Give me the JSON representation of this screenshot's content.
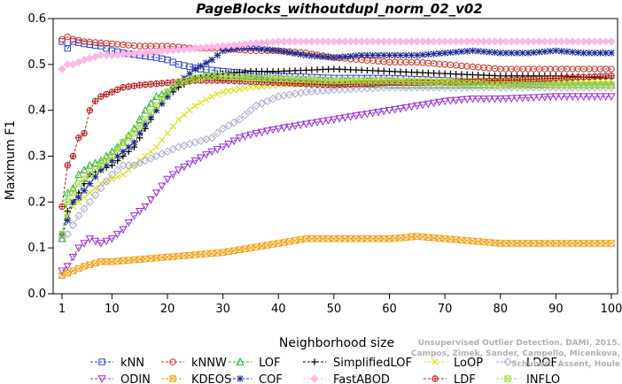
{
  "chart_data": {
    "type": "line",
    "title": "PageBlocks_withoutdupl_norm_02_v02",
    "xlabel": "Neighborhood size",
    "ylabel": "Maximum F1",
    "xlim": [
      1,
      100
    ],
    "ylim": [
      0.0,
      0.6
    ],
    "xticks": [
      "1",
      "10",
      "20",
      "30",
      "40",
      "50",
      "60",
      "70",
      "80",
      "90",
      "100"
    ],
    "yticks": [
      "0.0",
      "0.1",
      "0.2",
      "0.3",
      "0.4",
      "0.5",
      "0.6"
    ],
    "grid": false,
    "legend_position": "bottom",
    "series": [
      {
        "name": "kNN",
        "color": "#2a3fd0",
        "marker": "square",
        "points": [
          [
            1,
            0.55
          ],
          [
            2,
            0.535
          ],
          [
            3,
            0.55
          ],
          [
            5,
            0.545
          ],
          [
            8,
            0.54
          ],
          [
            10,
            0.53
          ],
          [
            12,
            0.525
          ],
          [
            15,
            0.52
          ],
          [
            18,
            0.515
          ],
          [
            20,
            0.51
          ],
          [
            22,
            0.5
          ],
          [
            24,
            0.495
          ],
          [
            26,
            0.49
          ],
          [
            30,
            0.485
          ],
          [
            35,
            0.48
          ],
          [
            40,
            0.475
          ],
          [
            50,
            0.47
          ],
          [
            60,
            0.47
          ],
          [
            70,
            0.465
          ],
          [
            80,
            0.46
          ],
          [
            90,
            0.455
          ],
          [
            100,
            0.455
          ]
        ]
      },
      {
        "name": "kNNW",
        "color": "#d03020",
        "marker": "circle",
        "points": [
          [
            1,
            0.555
          ],
          [
            2,
            0.56
          ],
          [
            3,
            0.555
          ],
          [
            5,
            0.55
          ],
          [
            10,
            0.545
          ],
          [
            15,
            0.54
          ],
          [
            20,
            0.54
          ],
          [
            25,
            0.535
          ],
          [
            30,
            0.535
          ],
          [
            35,
            0.53
          ],
          [
            40,
            0.53
          ],
          [
            45,
            0.525
          ],
          [
            50,
            0.515
          ],
          [
            55,
            0.51
          ],
          [
            60,
            0.505
          ],
          [
            65,
            0.505
          ],
          [
            70,
            0.5
          ],
          [
            75,
            0.495
          ],
          [
            80,
            0.49
          ],
          [
            90,
            0.49
          ],
          [
            100,
            0.49
          ]
        ]
      },
      {
        "name": "LOF",
        "color": "#20b020",
        "marker": "triangle-up",
        "points": [
          [
            1,
            0.12
          ],
          [
            2,
            0.22
          ],
          [
            3,
            0.23
          ],
          [
            4,
            0.26
          ],
          [
            6,
            0.28
          ],
          [
            8,
            0.29
          ],
          [
            10,
            0.31
          ],
          [
            12,
            0.33
          ],
          [
            14,
            0.36
          ],
          [
            16,
            0.4
          ],
          [
            18,
            0.43
          ],
          [
            20,
            0.44
          ],
          [
            22,
            0.46
          ],
          [
            25,
            0.47
          ],
          [
            28,
            0.475
          ],
          [
            30,
            0.47
          ],
          [
            35,
            0.47
          ],
          [
            40,
            0.465
          ],
          [
            50,
            0.46
          ],
          [
            60,
            0.455
          ],
          [
            70,
            0.455
          ],
          [
            80,
            0.455
          ],
          [
            90,
            0.455
          ],
          [
            100,
            0.455
          ]
        ]
      },
      {
        "name": "SimplifiedLOF",
        "color": "#000000",
        "marker": "plus",
        "points": [
          [
            1,
            0.13
          ],
          [
            2,
            0.18
          ],
          [
            3,
            0.2
          ],
          [
            4,
            0.22
          ],
          [
            6,
            0.26
          ],
          [
            8,
            0.27
          ],
          [
            10,
            0.28
          ],
          [
            12,
            0.3
          ],
          [
            14,
            0.32
          ],
          [
            16,
            0.36
          ],
          [
            18,
            0.4
          ],
          [
            20,
            0.43
          ],
          [
            22,
            0.45
          ],
          [
            25,
            0.47
          ],
          [
            28,
            0.475
          ],
          [
            30,
            0.48
          ],
          [
            35,
            0.485
          ],
          [
            40,
            0.485
          ],
          [
            50,
            0.49
          ],
          [
            60,
            0.485
          ],
          [
            70,
            0.48
          ],
          [
            80,
            0.475
          ],
          [
            90,
            0.475
          ],
          [
            100,
            0.47
          ]
        ]
      },
      {
        "name": "LoOP",
        "color": "#e0e020",
        "marker": "x",
        "points": [
          [
            1,
            0.13
          ],
          [
            2,
            0.17
          ],
          [
            3,
            0.19
          ],
          [
            4,
            0.2
          ],
          [
            6,
            0.22
          ],
          [
            8,
            0.24
          ],
          [
            10,
            0.25
          ],
          [
            12,
            0.26
          ],
          [
            14,
            0.28
          ],
          [
            16,
            0.3
          ],
          [
            18,
            0.32
          ],
          [
            20,
            0.35
          ],
          [
            22,
            0.38
          ],
          [
            25,
            0.41
          ],
          [
            28,
            0.43
          ],
          [
            30,
            0.44
          ],
          [
            35,
            0.45
          ],
          [
            40,
            0.455
          ],
          [
            50,
            0.46
          ],
          [
            60,
            0.465
          ],
          [
            70,
            0.465
          ],
          [
            80,
            0.465
          ],
          [
            90,
            0.465
          ],
          [
            100,
            0.465
          ]
        ]
      },
      {
        "name": "LDOF",
        "color": "#aaaad0",
        "marker": "diamond",
        "points": [
          [
            1,
            0.12
          ],
          [
            2,
            0.13
          ],
          [
            3,
            0.15
          ],
          [
            4,
            0.17
          ],
          [
            6,
            0.2
          ],
          [
            8,
            0.23
          ],
          [
            10,
            0.26
          ],
          [
            12,
            0.28
          ],
          [
            14,
            0.28
          ],
          [
            16,
            0.29
          ],
          [
            18,
            0.3
          ],
          [
            20,
            0.31
          ],
          [
            22,
            0.32
          ],
          [
            25,
            0.33
          ],
          [
            28,
            0.34
          ],
          [
            30,
            0.36
          ],
          [
            33,
            0.38
          ],
          [
            36,
            0.41
          ],
          [
            40,
            0.43
          ],
          [
            45,
            0.44
          ],
          [
            50,
            0.445
          ],
          [
            60,
            0.45
          ],
          [
            70,
            0.45
          ],
          [
            80,
            0.45
          ],
          [
            90,
            0.45
          ],
          [
            100,
            0.45
          ]
        ]
      },
      {
        "name": "ODIN",
        "color": "#9a2ed8",
        "marker": "triangle-down",
        "points": [
          [
            1,
            0.05
          ],
          [
            2,
            0.06
          ],
          [
            3,
            0.08
          ],
          [
            4,
            0.1
          ],
          [
            5,
            0.11
          ],
          [
            6,
            0.12
          ],
          [
            8,
            0.11
          ],
          [
            10,
            0.12
          ],
          [
            12,
            0.14
          ],
          [
            14,
            0.17
          ],
          [
            16,
            0.19
          ],
          [
            18,
            0.22
          ],
          [
            20,
            0.25
          ],
          [
            22,
            0.27
          ],
          [
            25,
            0.29
          ],
          [
            28,
            0.31
          ],
          [
            30,
            0.32
          ],
          [
            33,
            0.34
          ],
          [
            36,
            0.35
          ],
          [
            40,
            0.36
          ],
          [
            45,
            0.37
          ],
          [
            50,
            0.38
          ],
          [
            55,
            0.39
          ],
          [
            60,
            0.4
          ],
          [
            65,
            0.41
          ],
          [
            70,
            0.42
          ],
          [
            75,
            0.425
          ],
          [
            80,
            0.425
          ],
          [
            90,
            0.43
          ],
          [
            100,
            0.43
          ]
        ]
      },
      {
        "name": "KDEOS",
        "color": "#f0a010",
        "marker": "square-x",
        "points": [
          [
            1,
            0.04
          ],
          [
            3,
            0.05
          ],
          [
            5,
            0.06
          ],
          [
            8,
            0.07
          ],
          [
            10,
            0.07
          ],
          [
            15,
            0.075
          ],
          [
            20,
            0.08
          ],
          [
            25,
            0.085
          ],
          [
            30,
            0.09
          ],
          [
            35,
            0.1
          ],
          [
            40,
            0.11
          ],
          [
            45,
            0.12
          ],
          [
            50,
            0.12
          ],
          [
            55,
            0.12
          ],
          [
            60,
            0.12
          ],
          [
            65,
            0.125
          ],
          [
            70,
            0.12
          ],
          [
            75,
            0.115
          ],
          [
            80,
            0.11
          ],
          [
            90,
            0.11
          ],
          [
            100,
            0.11
          ]
        ]
      },
      {
        "name": "COF",
        "color": "#1a2a90",
        "marker": "star",
        "points": [
          [
            1,
            0.13
          ],
          [
            2,
            0.16
          ],
          [
            3,
            0.2
          ],
          [
            4,
            0.21
          ],
          [
            6,
            0.24
          ],
          [
            8,
            0.27
          ],
          [
            10,
            0.29
          ],
          [
            12,
            0.31
          ],
          [
            14,
            0.33
          ],
          [
            16,
            0.37
          ],
          [
            18,
            0.4
          ],
          [
            20,
            0.43
          ],
          [
            22,
            0.46
          ],
          [
            25,
            0.49
          ],
          [
            28,
            0.51
          ],
          [
            30,
            0.53
          ],
          [
            33,
            0.535
          ],
          [
            36,
            0.535
          ],
          [
            40,
            0.53
          ],
          [
            45,
            0.52
          ],
          [
            50,
            0.515
          ],
          [
            55,
            0.52
          ],
          [
            60,
            0.52
          ],
          [
            65,
            0.52
          ],
          [
            70,
            0.525
          ],
          [
            75,
            0.53
          ],
          [
            80,
            0.525
          ],
          [
            85,
            0.525
          ],
          [
            90,
            0.53
          ],
          [
            95,
            0.525
          ],
          [
            100,
            0.525
          ]
        ]
      },
      {
        "name": "FastABOD",
        "color": "#ffb8e8",
        "marker": "diamond-filled",
        "points": [
          [
            1,
            0.49
          ],
          [
            2,
            0.5
          ],
          [
            3,
            0.5
          ],
          [
            5,
            0.51
          ],
          [
            8,
            0.52
          ],
          [
            10,
            0.52
          ],
          [
            15,
            0.525
          ],
          [
            20,
            0.53
          ],
          [
            25,
            0.535
          ],
          [
            30,
            0.54
          ],
          [
            35,
            0.545
          ],
          [
            40,
            0.55
          ],
          [
            50,
            0.55
          ],
          [
            60,
            0.55
          ],
          [
            70,
            0.55
          ],
          [
            80,
            0.55
          ],
          [
            90,
            0.55
          ],
          [
            100,
            0.55
          ]
        ]
      },
      {
        "name": "LDF",
        "color": "#b01818",
        "marker": "circle-plus",
        "points": [
          [
            1,
            0.19
          ],
          [
            2,
            0.28
          ],
          [
            3,
            0.3
          ],
          [
            4,
            0.34
          ],
          [
            5,
            0.35
          ],
          [
            6,
            0.4
          ],
          [
            7,
            0.42
          ],
          [
            8,
            0.43
          ],
          [
            10,
            0.44
          ],
          [
            12,
            0.45
          ],
          [
            15,
            0.455
          ],
          [
            20,
            0.46
          ],
          [
            25,
            0.465
          ],
          [
            30,
            0.465
          ],
          [
            40,
            0.46
          ],
          [
            50,
            0.455
          ],
          [
            60,
            0.46
          ],
          [
            70,
            0.46
          ],
          [
            80,
            0.465
          ],
          [
            90,
            0.47
          ],
          [
            100,
            0.475
          ]
        ]
      },
      {
        "name": "INFLO",
        "color": "#a0d840",
        "marker": "square-x",
        "points": [
          [
            1,
            0.13
          ],
          [
            2,
            0.2
          ],
          [
            3,
            0.22
          ],
          [
            4,
            0.24
          ],
          [
            6,
            0.26
          ],
          [
            8,
            0.28
          ],
          [
            10,
            0.3
          ],
          [
            12,
            0.33
          ],
          [
            14,
            0.35
          ],
          [
            16,
            0.38
          ],
          [
            18,
            0.41
          ],
          [
            20,
            0.44
          ],
          [
            22,
            0.46
          ],
          [
            25,
            0.47
          ],
          [
            28,
            0.475
          ],
          [
            30,
            0.475
          ],
          [
            35,
            0.47
          ],
          [
            40,
            0.47
          ],
          [
            50,
            0.465
          ],
          [
            60,
            0.465
          ],
          [
            70,
            0.46
          ],
          [
            80,
            0.455
          ],
          [
            90,
            0.455
          ],
          [
            100,
            0.455
          ]
        ]
      }
    ]
  },
  "watermark": {
    "line1": "Unsupervised Outlier Detection. DAMI, 2015.",
    "line2": "Campos, Zimek, Sander, Campello, Micenkova, Schubert, Assent, Houle"
  }
}
